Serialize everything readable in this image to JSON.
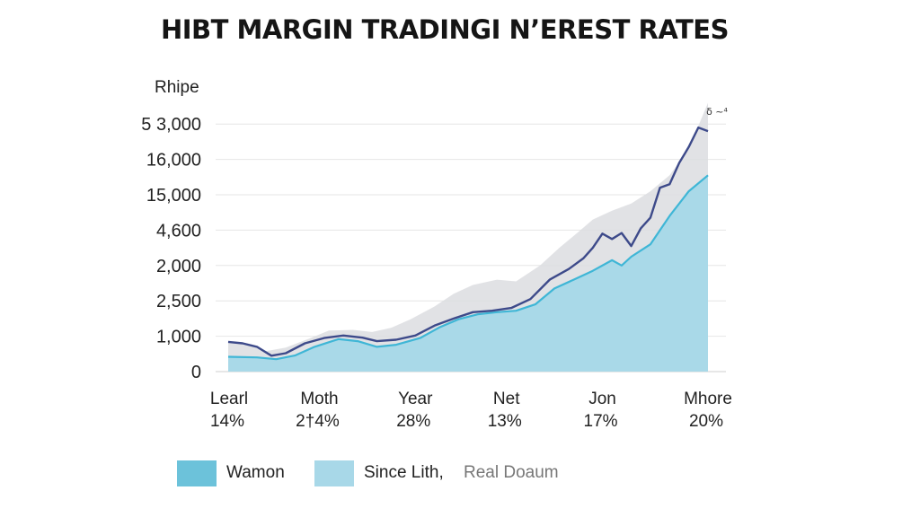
{
  "chart_data": {
    "type": "area",
    "title": "HIBT MARGIN TRADINGI N’EREST RATES",
    "ylabel": "Rhipe",
    "y_tick_labels": [
      "0",
      "1,000",
      "2,500",
      "2,000",
      "4,600",
      "15,000",
      "16,000",
      "5 3,000"
    ],
    "ylim": [
      0,
      7
    ],
    "x_tick_labels": [
      {
        "name": "Learl",
        "value": "14%"
      },
      {
        "name": "Moth",
        "value": "2†4%"
      },
      {
        "name": "Year",
        "value": "28%"
      },
      {
        "name": "Net",
        "value": "13%"
      },
      {
        "name": "Jon",
        "value": "17%"
      },
      {
        "name": "Mhore",
        "value": "20%"
      }
    ],
    "xlim": [
      0,
      100
    ],
    "grid": true,
    "legend_position": "bottom",
    "annotation": "δ ~⁴",
    "series": [
      {
        "name": "Real Doaum",
        "role": "upper band",
        "color": "#dcdde1",
        "points": [
          [
            0,
            0.84
          ],
          [
            4,
            0.74
          ],
          [
            8,
            0.58
          ],
          [
            12,
            0.68
          ],
          [
            17,
            0.94
          ],
          [
            21,
            1.16
          ],
          [
            26,
            1.18
          ],
          [
            30,
            1.12
          ],
          [
            34,
            1.24
          ],
          [
            38,
            1.48
          ],
          [
            43,
            1.84
          ],
          [
            47,
            2.2
          ],
          [
            51,
            2.45
          ],
          [
            56,
            2.6
          ],
          [
            60,
            2.55
          ],
          [
            65,
            3.0
          ],
          [
            69,
            3.5
          ],
          [
            73,
            3.95
          ],
          [
            76,
            4.3
          ],
          [
            80,
            4.55
          ],
          [
            84,
            4.75
          ],
          [
            88,
            5.1
          ],
          [
            92,
            5.55
          ],
          [
            96,
            6.3
          ],
          [
            100,
            7.6
          ]
        ]
      },
      {
        "name": "Since Lith,",
        "role": "line",
        "color": "#3d4a8a",
        "points": [
          [
            0,
            0.84
          ],
          [
            3,
            0.8
          ],
          [
            6,
            0.7
          ],
          [
            9,
            0.45
          ],
          [
            12,
            0.52
          ],
          [
            16,
            0.8
          ],
          [
            20,
            0.95
          ],
          [
            24,
            1.02
          ],
          [
            28,
            0.96
          ],
          [
            31,
            0.86
          ],
          [
            35,
            0.9
          ],
          [
            39,
            1.02
          ],
          [
            43,
            1.3
          ],
          [
            47,
            1.5
          ],
          [
            51,
            1.68
          ],
          [
            55,
            1.72
          ],
          [
            59,
            1.8
          ],
          [
            63,
            2.05
          ],
          [
            67,
            2.6
          ],
          [
            71,
            2.9
          ],
          [
            74,
            3.2
          ],
          [
            76,
            3.5
          ],
          [
            78,
            3.9
          ],
          [
            80,
            3.75
          ],
          [
            82,
            3.92
          ],
          [
            84,
            3.55
          ],
          [
            86,
            4.05
          ],
          [
            88,
            4.35
          ],
          [
            90,
            5.2
          ],
          [
            92,
            5.3
          ],
          [
            94,
            5.9
          ],
          [
            96,
            6.35
          ],
          [
            98,
            6.9
          ],
          [
            100,
            6.8
          ]
        ]
      },
      {
        "name": "Wamon",
        "role": "lower area",
        "color": "#a9d9e8",
        "points": [
          [
            0,
            0.42
          ],
          [
            6,
            0.4
          ],
          [
            10,
            0.35
          ],
          [
            14,
            0.46
          ],
          [
            18,
            0.7
          ],
          [
            23,
            0.92
          ],
          [
            27,
            0.86
          ],
          [
            31,
            0.7
          ],
          [
            35,
            0.76
          ],
          [
            40,
            0.95
          ],
          [
            44,
            1.25
          ],
          [
            48,
            1.48
          ],
          [
            52,
            1.62
          ],
          [
            56,
            1.68
          ],
          [
            60,
            1.72
          ],
          [
            64,
            1.9
          ],
          [
            68,
            2.35
          ],
          [
            72,
            2.6
          ],
          [
            76,
            2.85
          ],
          [
            80,
            3.15
          ],
          [
            82,
            3.0
          ],
          [
            84,
            3.25
          ],
          [
            88,
            3.6
          ],
          [
            92,
            4.4
          ],
          [
            96,
            5.1
          ],
          [
            100,
            5.55
          ]
        ]
      }
    ]
  },
  "legend": [
    {
      "label": "Wamon",
      "color": "#6cc2da"
    },
    {
      "label": "Since Lith,",
      "color": "#a8d8e8"
    },
    {
      "label": "Real Doaum",
      "color": null
    }
  ]
}
